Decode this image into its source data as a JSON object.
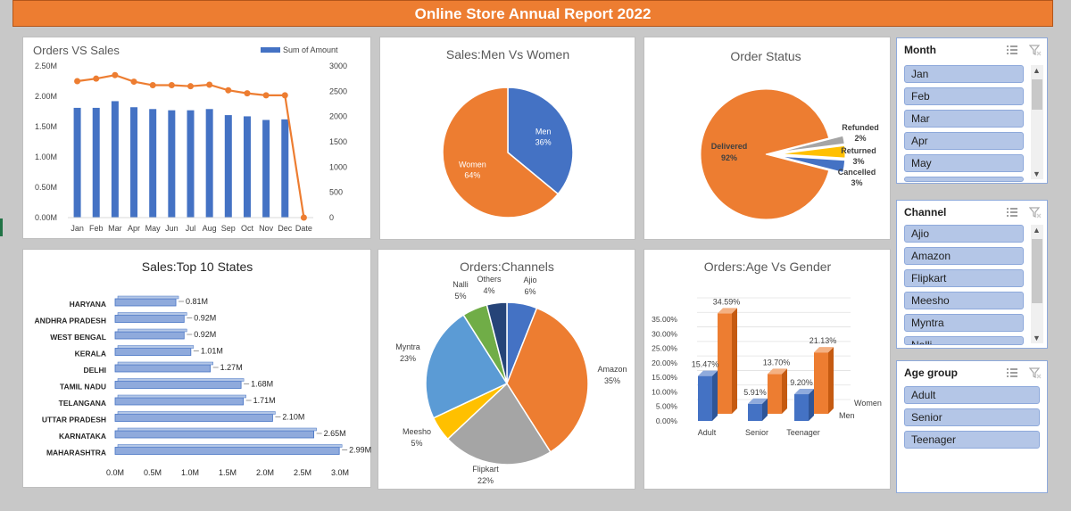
{
  "report_title": "Online Store Annual Report 2022",
  "colors": {
    "orange": "#ed7d31",
    "blue": "#4472c4",
    "gray": "#a5a5a5",
    "yellow": "#ffc000",
    "lightblue": "#5b9bd5",
    "green": "#70ad47",
    "navy": "#264478"
  },
  "chart_data": [
    {
      "type": "bar",
      "title": "Orders VS Sales",
      "legend": "Sum of Amount",
      "categories": [
        "Jan",
        "Feb",
        "Mar",
        "Apr",
        "May",
        "Jun",
        "Jul",
        "Aug",
        "Sep",
        "Oct",
        "Nov",
        "Dec",
        "Date"
      ],
      "series": [
        {
          "name": "Sum of Amount",
          "type": "bar",
          "values": [
            1.81,
            1.81,
            1.92,
            1.82,
            1.79,
            1.77,
            1.77,
            1.79,
            1.69,
            1.67,
            1.61,
            1.62,
            0
          ]
        },
        {
          "type": "line",
          "axis": "secondary",
          "values": [
            2700,
            2750,
            2820,
            2690,
            2620,
            2620,
            2600,
            2630,
            2520,
            2460,
            2420,
            2420,
            0
          ]
        }
      ],
      "y_ticks": [
        "2.50M",
        "2.00M",
        "1.50M",
        "1.00M",
        "0.50M",
        "0.00M"
      ],
      "y2_ticks": [
        "3000",
        "2500",
        "2000",
        "1500",
        "1000",
        "500",
        "0"
      ],
      "ylim": [
        0,
        2.5
      ],
      "y2lim": [
        0,
        3000
      ]
    },
    {
      "type": "pie",
      "title": "Sales:Men Vs Women",
      "labels": [
        "Men",
        "Women"
      ],
      "values": [
        36,
        64
      ],
      "value_labels": [
        "36%",
        "64%"
      ]
    },
    {
      "type": "pie",
      "title": "Order Status",
      "labels": [
        "Delivered",
        "Refunded",
        "Returned",
        "Cancelled"
      ],
      "values": [
        92,
        2,
        3,
        3
      ],
      "value_labels": [
        "92%",
        "2%",
        "3%",
        "3%"
      ]
    },
    {
      "type": "bar",
      "orientation": "horizontal",
      "title": "Sales:Top 10 States",
      "categories": [
        "HARYANA",
        "ANDHRA PRADESH",
        "WEST BENGAL",
        "KERALA",
        "DELHI",
        "TAMIL NADU",
        "TELANGANA",
        "UTTAR PRADESH",
        "KARNATAKA",
        "MAHARASHTRA"
      ],
      "values": [
        0.81,
        0.92,
        0.92,
        1.01,
        1.27,
        1.68,
        1.71,
        2.1,
        2.65,
        2.99
      ],
      "value_labels": [
        "0.81M",
        "0.92M",
        "0.92M",
        "1.01M",
        "1.27M",
        "1.68M",
        "1.71M",
        "2.10M",
        "2.65M",
        "2.99M"
      ],
      "x_ticks": [
        "0.0M",
        "0.5M",
        "1.0M",
        "1.5M",
        "2.0M",
        "2.5M",
        "3.0M"
      ],
      "xlim": [
        0,
        3.0
      ]
    },
    {
      "type": "pie",
      "title": "Orders:Channels",
      "labels": [
        "Ajio",
        "Amazon",
        "Flipkart",
        "Meesho",
        "Myntra",
        "Nalli",
        "Others"
      ],
      "values": [
        6,
        35,
        22,
        5,
        23,
        5,
        4
      ],
      "value_labels": [
        "6%",
        "35%",
        "22%",
        "5%",
        "23%",
        "5%",
        "4%"
      ]
    },
    {
      "type": "bar",
      "title": "Orders:Age Vs Gender",
      "categories": [
        "Adult",
        "Senior",
        "Teenager"
      ],
      "series": [
        {
          "name": "Men",
          "values": [
            15.47,
            5.91,
            9.2
          ],
          "value_labels": [
            "15.47%",
            "5.91%",
            "9.20%"
          ]
        },
        {
          "name": "Women",
          "values": [
            34.59,
            13.7,
            21.13
          ],
          "value_labels": [
            "34.59%",
            "13.70%",
            "21.13%"
          ]
        }
      ],
      "y_ticks": [
        "35.00%",
        "30.00%",
        "25.00%",
        "20.00%",
        "15.00%",
        "10.00%",
        "5.00%",
        "0.00%"
      ],
      "ylim": [
        0,
        35
      ]
    }
  ],
  "slicers": {
    "month": {
      "title": "Month",
      "items": [
        "Jan",
        "Feb",
        "Mar",
        "Apr",
        "May"
      ]
    },
    "channel": {
      "title": "Channel",
      "items": [
        "Ajio",
        "Amazon",
        "Flipkart",
        "Meesho",
        "Myntra",
        "Nalli"
      ]
    },
    "age": {
      "title": "Age group",
      "items": [
        "Adult",
        "Senior",
        "Teenager"
      ]
    }
  }
}
